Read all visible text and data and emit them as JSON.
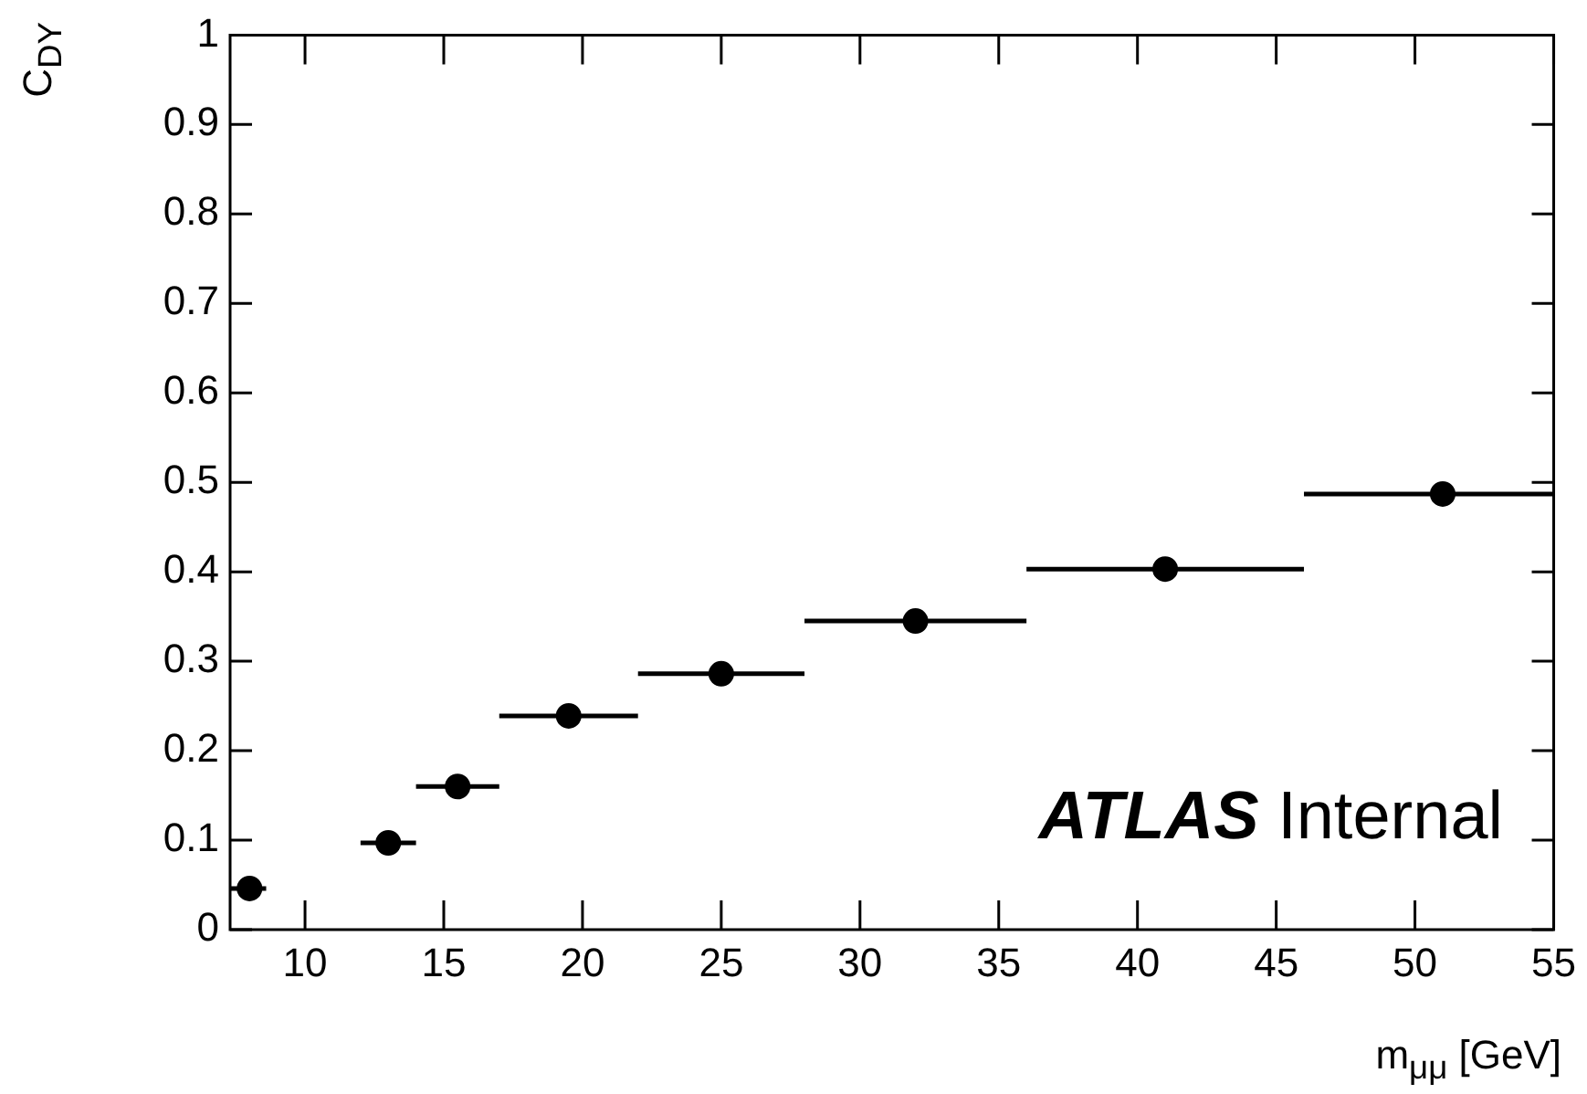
{
  "chart_data": {
    "type": "scatter",
    "xlabel": "m$_{μμ}$ [GeV]",
    "ylabel": "C$_{DY}$",
    "x": [
      8,
      13,
      15.5,
      19.5,
      25,
      32,
      41,
      51
    ],
    "values": [
      0.046,
      0.097,
      0.16,
      0.239,
      0.286,
      0.345,
      0.403,
      0.487
    ],
    "xerrors": [
      [
        7.3,
        8.6
      ],
      [
        12,
        14
      ],
      [
        14,
        17
      ],
      [
        17,
        22
      ],
      [
        22,
        28
      ],
      [
        28,
        36
      ],
      [
        36,
        46
      ],
      [
        46,
        55
      ]
    ],
    "color": "#000000",
    "marker": "circle",
    "xlim": [
      7.3,
      55
    ],
    "xticks": [
      10,
      15,
      20,
      25,
      30,
      35,
      40,
      45,
      50,
      55
    ],
    "ylim": [
      0,
      1
    ],
    "yticks": [
      0,
      0.1,
      0.2,
      0.3,
      0.4,
      0.5,
      0.6,
      0.7,
      0.8,
      0.9,
      1
    ],
    "grid": false,
    "legend": false,
    "annotations": [
      "ATLAS Internal"
    ]
  }
}
